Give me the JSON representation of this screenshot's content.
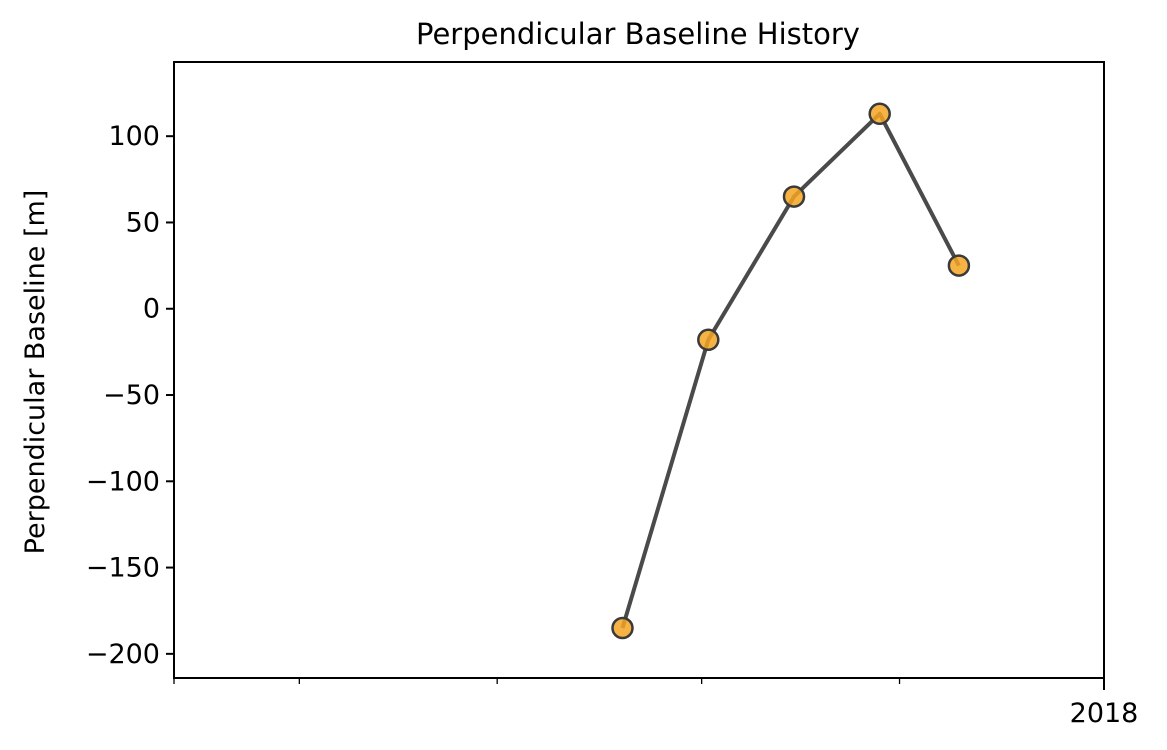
{
  "chart_data": {
    "type": "line",
    "title": "Perpendicular Baseline History",
    "xlabel": "",
    "ylabel": "Perpendicular Baseline [m]",
    "x_tick_label": "2018",
    "y_ticks": [
      100,
      50,
      0,
      -50,
      -100,
      -150,
      -200
    ],
    "y_tick_labels": [
      "100",
      "50",
      "0",
      "−50",
      "−100",
      "−150",
      "−200"
    ],
    "ylim": [
      -214,
      143
    ],
    "xlim": [
      "2017-08-13",
      "2018-01-01"
    ],
    "minor_x_ticks": [
      "2017-08-13",
      "2017-09-01",
      "2017-10-01",
      "2017-11-01",
      "2017-12-01",
      "2018-01-01"
    ],
    "series": [
      {
        "x": [
          "2017-10-20",
          "2017-11-02",
          "2017-11-15",
          "2017-11-28",
          "2017-12-10"
        ],
        "values": [
          -185,
          -18,
          65,
          113,
          25
        ]
      }
    ],
    "grid": false,
    "colors": {
      "line": "#4a4a4a",
      "marker_fill": "#f5a623",
      "marker_edge": "#3a3a3a"
    }
  }
}
